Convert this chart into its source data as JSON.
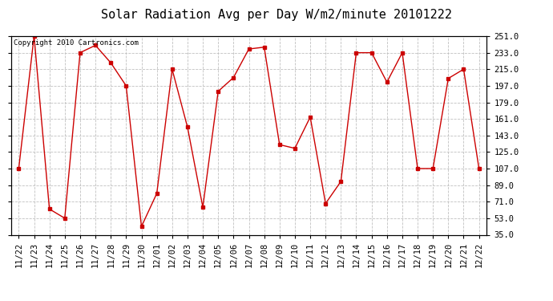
{
  "title": "Solar Radiation Avg per Day W/m2/minute 20101222",
  "copyright": "Copyright 2010 Cartronics.com",
  "labels": [
    "11/22",
    "11/23",
    "11/24",
    "11/25",
    "11/26",
    "11/27",
    "11/28",
    "11/29",
    "11/30",
    "12/01",
    "12/02",
    "12/03",
    "12/04",
    "12/05",
    "12/06",
    "12/07",
    "12/08",
    "12/09",
    "12/10",
    "12/11",
    "12/12",
    "12/13",
    "12/14",
    "12/15",
    "12/16",
    "12/17",
    "12/18",
    "12/19",
    "12/20",
    "12/21",
    "12/22"
  ],
  "values": [
    107,
    251,
    63,
    53,
    233,
    241,
    222,
    197,
    44,
    80,
    215,
    152,
    65,
    191,
    206,
    237,
    239,
    133,
    129,
    163,
    69,
    93,
    233,
    233,
    201,
    233,
    107,
    107,
    205,
    215,
    107
  ],
  "yticks": [
    35.0,
    53.0,
    71.0,
    89.0,
    107.0,
    125.0,
    143.0,
    161.0,
    179.0,
    197.0,
    215.0,
    233.0,
    251.0
  ],
  "ymin": 35.0,
  "ymax": 251.0,
  "line_color": "#cc0000",
  "marker": "s",
  "marker_size": 3,
  "bg_color": "#ffffff",
  "grid_color": "#c0c0c0",
  "title_fontsize": 11,
  "copyright_fontsize": 6.5,
  "tick_fontsize": 7.5,
  "figwidth": 6.9,
  "figheight": 3.75,
  "dpi": 100
}
